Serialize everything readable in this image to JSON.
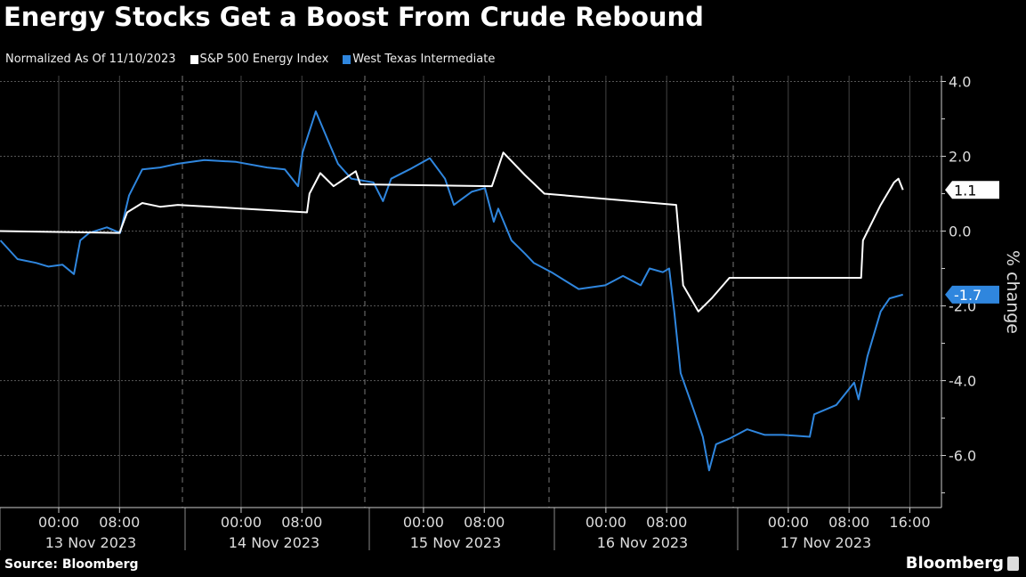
{
  "title": "Energy Stocks Get a Boost From Crude Rebound",
  "source": "Source: Bloomberg",
  "brand": "Bloomberg",
  "chart_data": {
    "type": "line",
    "subtitle": "Normalized As Of 11/10/2023",
    "ylabel": "% change",
    "ylim": [
      -7.2,
      4.3
    ],
    "yticks": [
      4.0,
      2.0,
      0.0,
      -2.0,
      -4.0,
      -6.0
    ],
    "ytick_labels": [
      "4.0",
      "2.0",
      "0.0",
      "-2.0",
      "-4.0",
      "-6.0"
    ],
    "xrange": [
      "2023-11-12 16:15",
      "2023-11-17 21:30"
    ],
    "xtick_times": [
      "00:00",
      "08:00",
      "00:00",
      "08:00",
      "00:00",
      "08:00",
      "00:00",
      "08:00",
      "00:00",
      "08:00",
      "16:00"
    ],
    "xtick_positions": [
      "2023-11-13 00:00",
      "2023-11-13 08:00",
      "2023-11-14 00:00",
      "2023-11-14 08:00",
      "2023-11-15 00:00",
      "2023-11-15 08:00",
      "2023-11-16 00:00",
      "2023-11-16 08:00",
      "2023-11-17 00:00",
      "2023-11-17 08:00",
      "2023-11-17 16:00"
    ],
    "xday_labels": [
      "13 Nov 2023",
      "14 Nov 2023",
      "15 Nov 2023",
      "16 Nov 2023",
      "17 Nov 2023"
    ],
    "grid": true,
    "legend": "top-left",
    "series": [
      {
        "name": "S&P 500 Energy Index",
        "color": "#ffffff",
        "last_label": "1.1",
        "points": [
          [
            "2023-11-12 16:15",
            0.0
          ],
          [
            "2023-11-13 08:00",
            -0.05
          ],
          [
            "2023-11-13 09:00",
            0.5
          ],
          [
            "2023-11-13 11:00",
            0.75
          ],
          [
            "2023-11-13 13:20",
            0.65
          ],
          [
            "2023-11-13 15:40",
            0.7
          ],
          [
            "2023-11-14 08:40",
            0.5
          ],
          [
            "2023-11-14 09:00",
            1.0
          ],
          [
            "2023-11-14 10:25",
            1.55
          ],
          [
            "2023-11-14 12:10",
            1.2
          ],
          [
            "2023-11-14 15:05",
            1.6
          ],
          [
            "2023-11-14 15:40",
            1.25
          ],
          [
            "2023-11-15 09:00",
            1.2
          ],
          [
            "2023-11-15 10:30",
            2.1
          ],
          [
            "2023-11-15 13:20",
            1.5
          ],
          [
            "2023-11-15 15:55",
            1.0
          ],
          [
            "2023-11-16 09:15",
            0.7
          ],
          [
            "2023-11-16 10:10",
            -1.45
          ],
          [
            "2023-11-16 12:10",
            -2.15
          ],
          [
            "2023-11-16 13:55",
            -1.8
          ],
          [
            "2023-11-16 16:15",
            -1.25
          ],
          [
            "2023-11-17 09:35",
            -1.25
          ],
          [
            "2023-11-17 09:50",
            -0.25
          ],
          [
            "2023-11-17 12:10",
            0.7
          ],
          [
            "2023-11-17 13:55",
            1.3
          ],
          [
            "2023-11-17 14:30",
            1.4
          ],
          [
            "2023-11-17 15:05",
            1.1
          ]
        ]
      },
      {
        "name": "West Texas Intermediate",
        "color": "#2f86de",
        "last_label": "-1.7",
        "points": [
          [
            "2023-11-12 16:20",
            -0.25
          ],
          [
            "2023-11-12 18:35",
            -0.75
          ],
          [
            "2023-11-12 21:00",
            -0.85
          ],
          [
            "2023-11-12 22:40",
            -0.95
          ],
          [
            "2023-11-13 00:30",
            -0.9
          ],
          [
            "2023-11-13 02:00",
            -1.15
          ],
          [
            "2023-11-13 02:50",
            -0.25
          ],
          [
            "2023-11-13 04:00",
            -0.05
          ],
          [
            "2023-11-13 06:20",
            0.1
          ],
          [
            "2023-11-13 08:05",
            -0.05
          ],
          [
            "2023-11-13 09:15",
            0.95
          ],
          [
            "2023-11-13 11:00",
            1.65
          ],
          [
            "2023-11-13 13:20",
            1.7
          ],
          [
            "2023-11-13 15:40",
            1.8
          ],
          [
            "2023-11-13 19:10",
            1.9
          ],
          [
            "2023-11-13 23:20",
            1.85
          ],
          [
            "2023-11-14 03:25",
            1.7
          ],
          [
            "2023-11-14 05:45",
            1.65
          ],
          [
            "2023-11-14 07:30",
            1.2
          ],
          [
            "2023-11-14 08:05",
            2.1
          ],
          [
            "2023-11-14 09:50",
            3.2
          ],
          [
            "2023-11-14 11:35",
            2.35
          ],
          [
            "2023-11-14 12:45",
            1.8
          ],
          [
            "2023-11-14 14:30",
            1.4
          ],
          [
            "2023-11-14 17:25",
            1.3
          ],
          [
            "2023-11-14 18:40",
            0.8
          ],
          [
            "2023-11-14 19:45",
            1.4
          ],
          [
            "2023-11-14 22:10",
            1.65
          ],
          [
            "2023-11-15 00:50",
            1.95
          ],
          [
            "2023-11-15 02:50",
            1.4
          ],
          [
            "2023-11-15 04:00",
            0.7
          ],
          [
            "2023-11-15 06:20",
            1.05
          ],
          [
            "2023-11-15 08:05",
            1.15
          ],
          [
            "2023-11-15 09:15",
            0.25
          ],
          [
            "2023-11-15 09:50",
            0.6
          ],
          [
            "2023-11-15 11:35",
            -0.25
          ],
          [
            "2023-11-15 13:20",
            -0.6
          ],
          [
            "2023-11-15 14:30",
            -0.85
          ],
          [
            "2023-11-15 16:50",
            -1.1
          ],
          [
            "2023-11-15 20:25",
            -1.55
          ],
          [
            "2023-11-15 23:55",
            -1.45
          ],
          [
            "2023-11-16 02:15",
            -1.2
          ],
          [
            "2023-11-16 04:35",
            -1.45
          ],
          [
            "2023-11-16 05:45",
            -1.0
          ],
          [
            "2023-11-16 07:30",
            -1.1
          ],
          [
            "2023-11-16 08:20",
            -1.0
          ],
          [
            "2023-11-16 09:00",
            -2.15
          ],
          [
            "2023-11-16 09:50",
            -3.8
          ],
          [
            "2023-11-16 11:35",
            -4.8
          ],
          [
            "2023-11-16 12:45",
            -5.5
          ],
          [
            "2023-11-16 13:35",
            -6.4
          ],
          [
            "2023-11-16 14:30",
            -5.7
          ],
          [
            "2023-11-16 16:15",
            -5.55
          ],
          [
            "2023-11-16 18:35",
            -5.3
          ],
          [
            "2023-11-16 20:55",
            -5.45
          ],
          [
            "2023-11-16 23:20",
            -5.45
          ],
          [
            "2023-11-17 02:50",
            -5.5
          ],
          [
            "2023-11-17 03:25",
            -4.9
          ],
          [
            "2023-11-17 06:20",
            -4.65
          ],
          [
            "2023-11-17 08:40",
            -4.05
          ],
          [
            "2023-11-17 09:15",
            -4.5
          ],
          [
            "2023-11-17 10:25",
            -3.35
          ],
          [
            "2023-11-17 12:10",
            -2.15
          ],
          [
            "2023-11-17 13:20",
            -1.8
          ],
          [
            "2023-11-17 15:05",
            -1.7
          ]
        ]
      }
    ]
  }
}
